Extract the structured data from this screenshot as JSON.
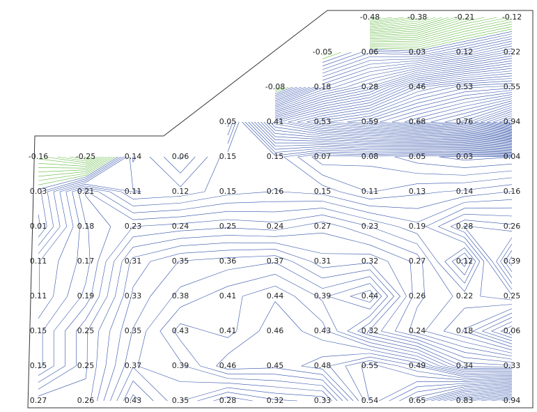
{
  "chart_data": {
    "type": "contour",
    "line_color": "#2f4fa8",
    "low_color": "#5cb83a",
    "grid_values": [
      [
        null,
        null,
        null,
        null,
        null,
        null,
        null,
        -0.48,
        -0.38,
        -0.21,
        -0.12
      ],
      [
        null,
        null,
        null,
        null,
        null,
        null,
        -0.05,
        0.06,
        0.03,
        0.12,
        0.22
      ],
      [
        null,
        null,
        null,
        null,
        null,
        -0.08,
        0.18,
        0.28,
        0.46,
        0.53,
        0.55
      ],
      [
        null,
        null,
        null,
        null,
        0.05,
        0.41,
        0.53,
        0.59,
        0.68,
        0.76,
        0.94
      ],
      [
        -0.16,
        -0.25,
        0.14,
        0.06,
        0.15,
        0.15,
        0.07,
        0.08,
        0.05,
        0.03,
        0.04
      ],
      [
        0.03,
        0.21,
        0.11,
        0.12,
        0.15,
        0.16,
        0.15,
        0.11,
        0.13,
        0.14,
        0.16
      ],
      [
        0.01,
        0.18,
        0.23,
        0.24,
        0.25,
        0.24,
        0.27,
        0.23,
        0.19,
        0.28,
        0.26
      ],
      [
        0.11,
        0.17,
        0.31,
        0.35,
        0.36,
        0.37,
        0.31,
        0.32,
        0.27,
        0.12,
        0.39
      ],
      [
        0.11,
        0.19,
        0.33,
        0.38,
        0.41,
        0.44,
        0.39,
        0.44,
        0.26,
        0.22,
        0.25
      ],
      [
        0.15,
        0.25,
        0.35,
        0.43,
        0.41,
        0.46,
        0.43,
        0.32,
        0.24,
        0.18,
        0.06
      ],
      [
        0.15,
        0.25,
        0.37,
        0.39,
        0.46,
        0.45,
        0.48,
        0.55,
        0.49,
        0.34,
        0.33
      ],
      [
        0.27,
        0.26,
        0.43,
        0.35,
        0.28,
        0.32,
        0.33,
        0.54,
        0.65,
        0.83,
        0.94
      ]
    ]
  }
}
